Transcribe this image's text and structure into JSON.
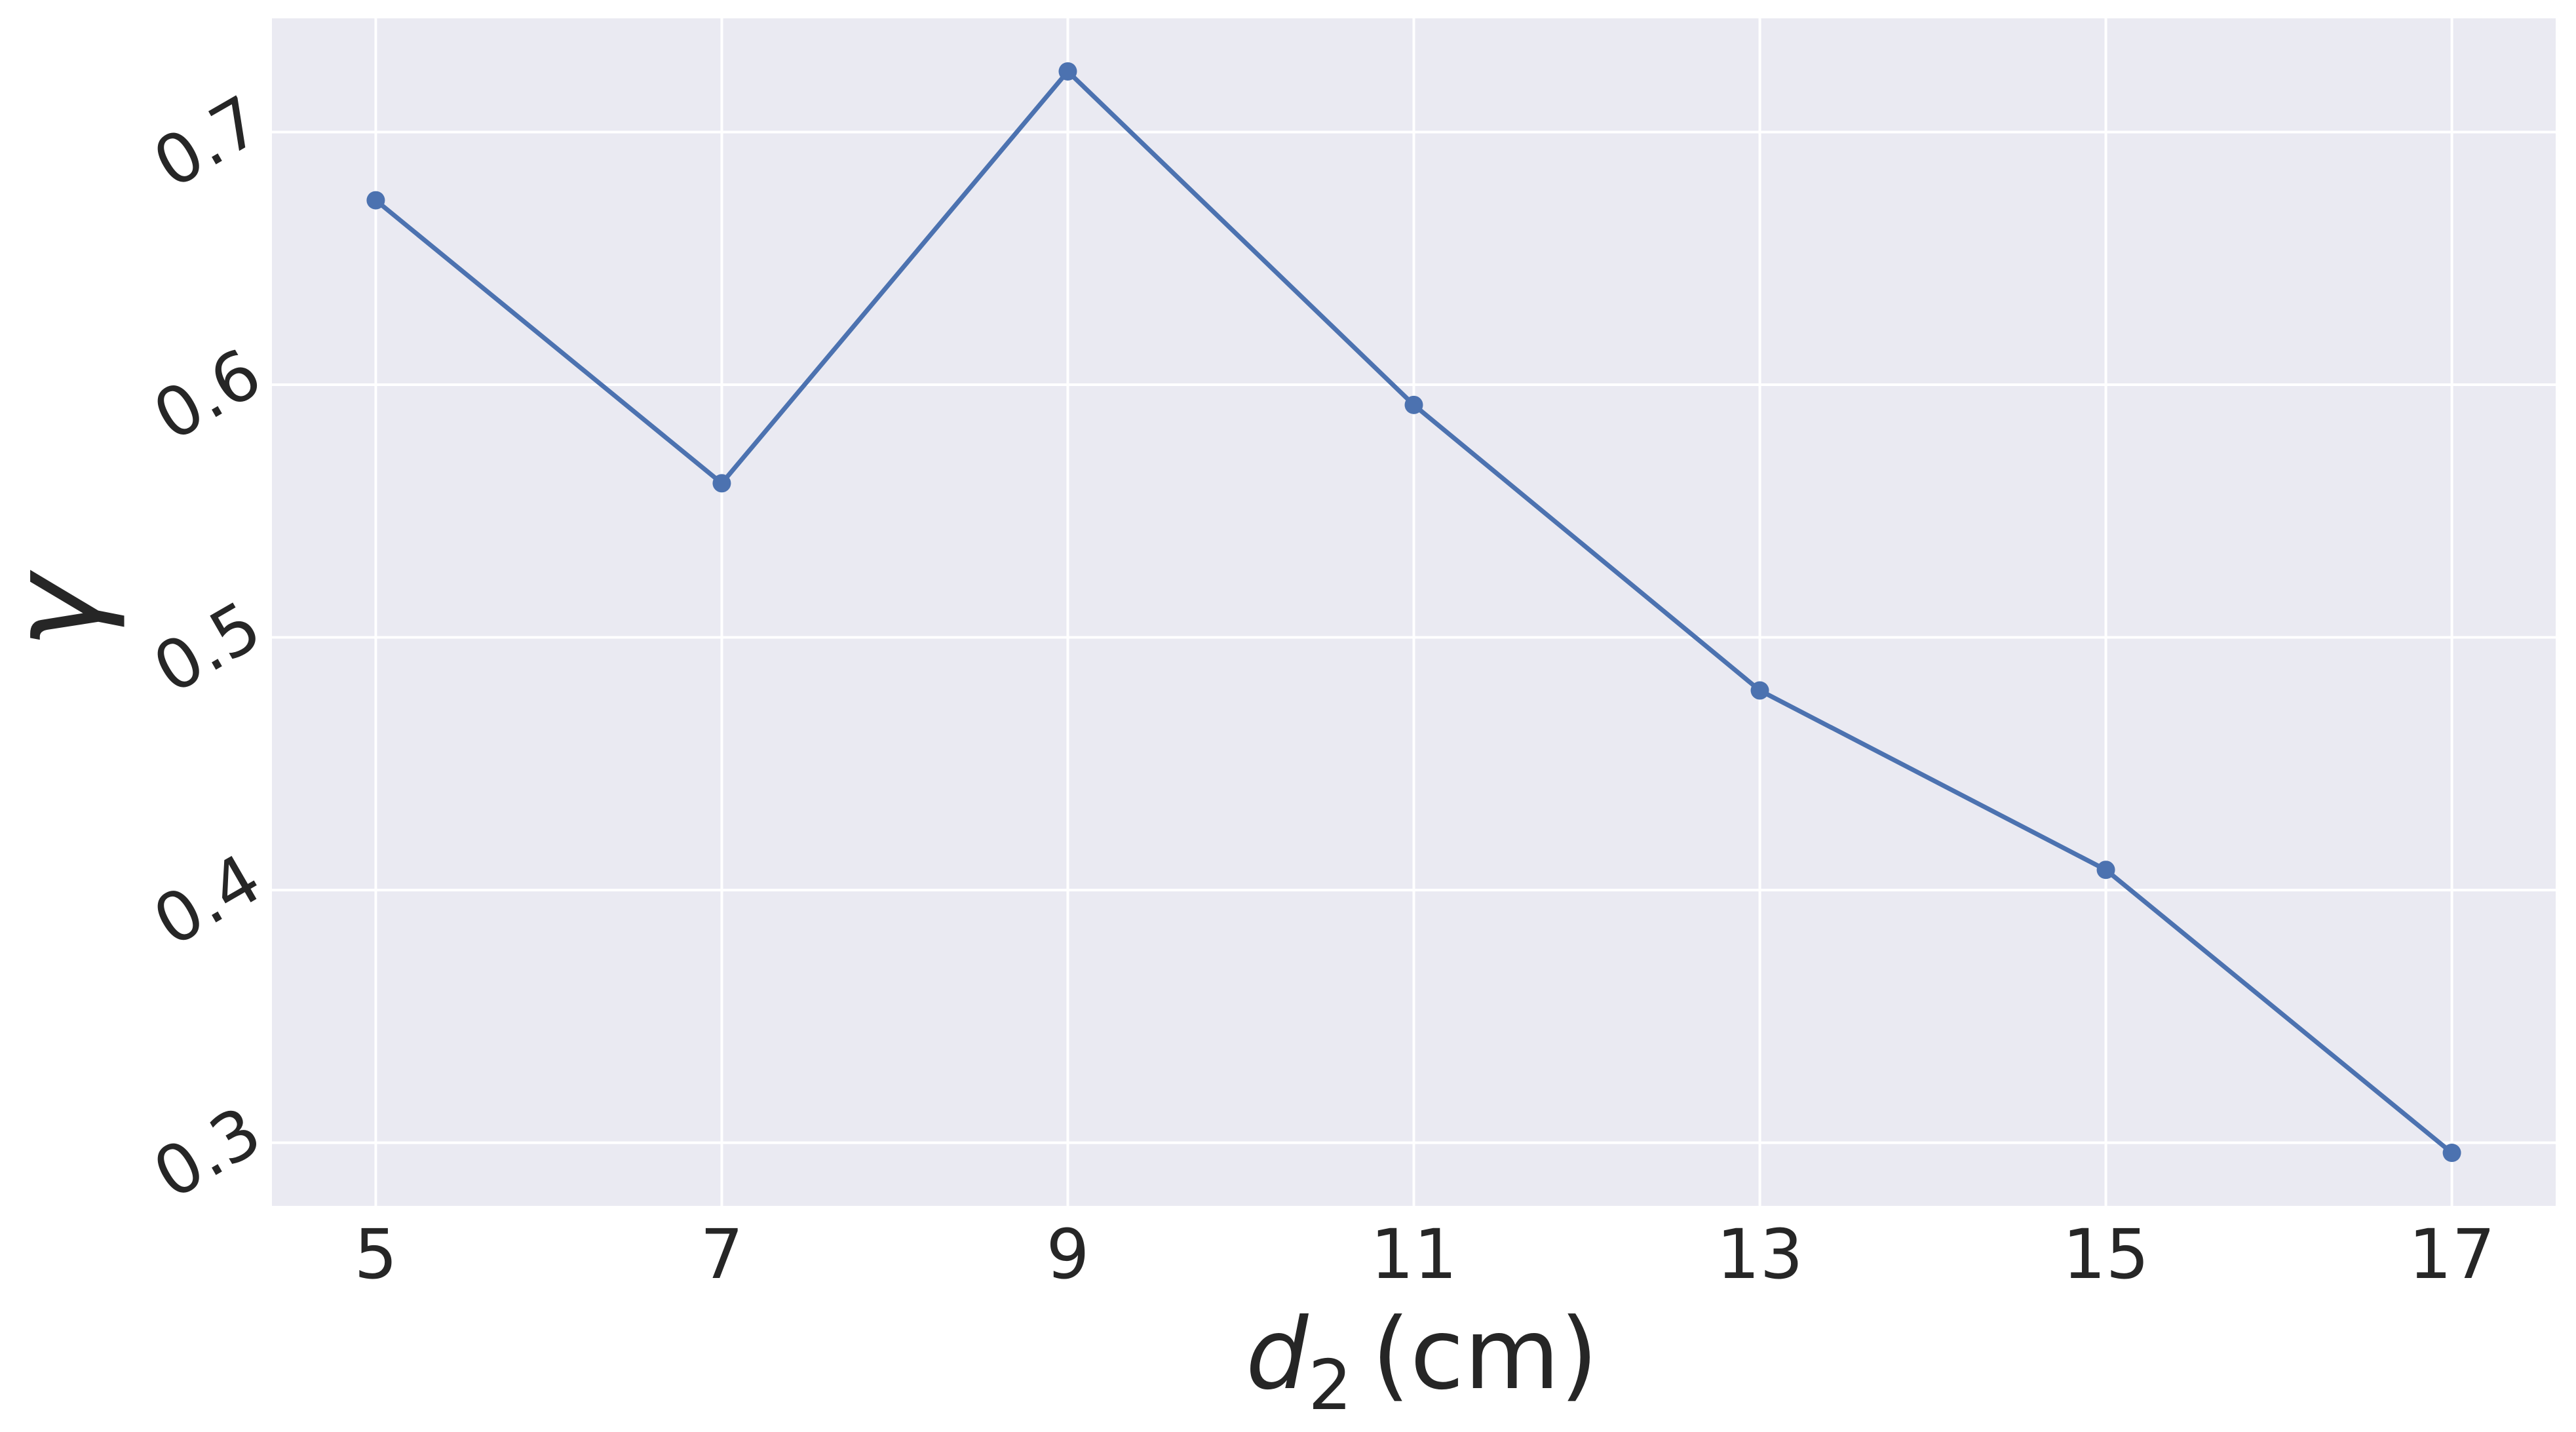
{
  "chart_data": {
    "type": "line",
    "xlabel": {
      "main": "d",
      "sub": "2",
      "unit": "(cm)"
    },
    "ylabel": "γ",
    "x": [
      5,
      7,
      9,
      11,
      13,
      15,
      17
    ],
    "x_ticks": [
      "5",
      "7",
      "9",
      "11",
      "13",
      "15",
      "17"
    ],
    "y_ticks": [
      "0.3",
      "0.4",
      "0.5",
      "0.6",
      "0.7"
    ],
    "xlim": [
      4.4,
      17.6
    ],
    "ylim": [
      0.275,
      0.745
    ],
    "series": [
      {
        "values": [
          0.673,
          0.561,
          0.724,
          0.592,
          0.479,
          0.408,
          0.296
        ]
      }
    ],
    "grid": true,
    "colors": {
      "background": "#eaeaf2",
      "grid": "#ffffff",
      "line": "#4c72b0",
      "text": "#262626"
    }
  }
}
